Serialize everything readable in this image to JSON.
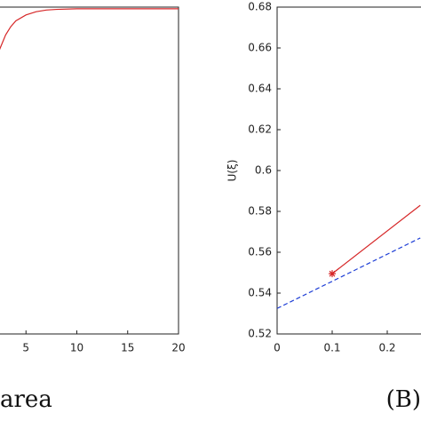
{
  "chart_data": [
    {
      "type": "line",
      "caption": "area",
      "xlim": [
        0,
        20
      ],
      "xticks": [
        5,
        10,
        15,
        20
      ],
      "ylim": [
        0,
        1
      ],
      "series": [
        {
          "color": "#d62728",
          "x": [
            2.4,
            3,
            3.5,
            4,
            5,
            6,
            7,
            8,
            10,
            12,
            15,
            20
          ],
          "values": [
            0.87,
            0.915,
            0.94,
            0.958,
            0.976,
            0.986,
            0.991,
            0.993,
            0.995,
            0.995,
            0.995,
            0.995
          ]
        }
      ]
    },
    {
      "type": "line",
      "caption": "(B)",
      "ylabel": "U(ξ)",
      "xlim": [
        0,
        0.3
      ],
      "xticks": [
        0,
        0.1,
        0.2
      ],
      "ylim": [
        0.52,
        0.68
      ],
      "yticks": [
        0.52,
        0.54,
        0.56,
        0.58,
        0.6,
        0.62,
        0.64,
        0.66,
        0.68
      ],
      "series": [
        {
          "color": "#d62728",
          "dashed": false,
          "x": [
            0.1,
            0.26
          ],
          "values": [
            0.5495,
            0.583
          ]
        },
        {
          "color": "#1f3fd6",
          "dashed": true,
          "x": [
            0,
            0.26
          ],
          "values": [
            0.5325,
            0.567
          ]
        }
      ],
      "markers": {
        "color": "#d62728",
        "x": [
          0.1
        ],
        "values": [
          0.5495
        ]
      }
    }
  ]
}
